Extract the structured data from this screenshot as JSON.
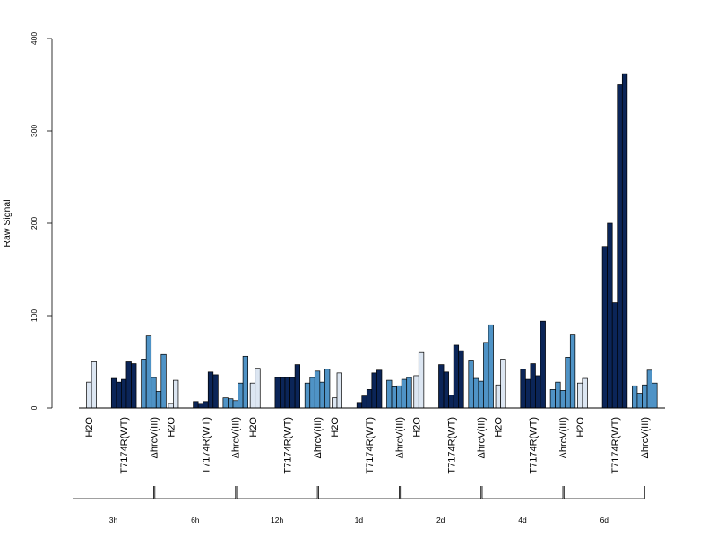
{
  "chart_data": {
    "type": "bar",
    "ylabel": "Raw Signal",
    "ylim": [
      0,
      400
    ],
    "yticks": [
      "0",
      "100",
      "200",
      "300",
      "400"
    ],
    "treatments": [
      "H2O",
      "T7174R(WT)",
      "ΔhrcV(III)"
    ],
    "colors": {
      "H2O": "#dce6f2",
      "T7174R(WT)": "#0b2558",
      "ΔhrcV(III)": "#4f93c6"
    },
    "groups": [
      {
        "label": "3h",
        "H2O": [
          0,
          28,
          50
        ],
        "T7174R(WT)": [
          32,
          28,
          31,
          50,
          48
        ],
        "ΔhrcV(III)": [
          53,
          78,
          33,
          18,
          58
        ]
      },
      {
        "label": "6h",
        "H2O": [
          0,
          5,
          30
        ],
        "T7174R(WT)": [
          7,
          5,
          7,
          39,
          36
        ],
        "ΔhrcV(III)": [
          11,
          10,
          8,
          27,
          56
        ]
      },
      {
        "label": "12h",
        "H2O": [
          0,
          27,
          43
        ],
        "T7174R(WT)": [
          33,
          33,
          33,
          33,
          47
        ],
        "ΔhrcV(III)": [
          27,
          33,
          40,
          28,
          42
        ]
      },
      {
        "label": "1d",
        "H2O": [
          0,
          11,
          38
        ],
        "T7174R(WT)": [
          6,
          13,
          20,
          38,
          41
        ],
        "ΔhrcV(III)": [
          30,
          23,
          24,
          31,
          33
        ]
      },
      {
        "label": "2d",
        "H2O": [
          0,
          35,
          60
        ],
        "T7174R(WT)": [
          47,
          39,
          14,
          68,
          62
        ],
        "ΔhrcV(III)": [
          51,
          32,
          29,
          71,
          90
        ]
      },
      {
        "label": "4d",
        "H2O": [
          0,
          25,
          53
        ],
        "T7174R(WT)": [
          42,
          31,
          48,
          35,
          94
        ],
        "ΔhrcV(III)": [
          20,
          28,
          19,
          55,
          79
        ]
      },
      {
        "label": "6d",
        "H2O": [
          0,
          27,
          32
        ],
        "T7174R(WT)": [
          175,
          200,
          114,
          350,
          362
        ],
        "ΔhrcV(III)": [
          24,
          16,
          25,
          41,
          27
        ]
      }
    ]
  }
}
